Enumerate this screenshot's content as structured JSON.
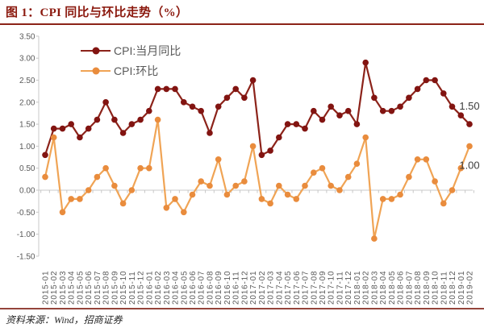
{
  "figure": {
    "title": "图 1：CPI 同比与环比走势（%）",
    "source": "资料来源：Wind，招商证券"
  },
  "colors": {
    "title_red": "#8B190E",
    "rule_top": "#8C2318",
    "rule_bottom": "#94443B",
    "yoy_line": "#8C231A",
    "yoy_marker": "#821411",
    "mom_line": "#F0A455",
    "mom_marker": "#E98C3D",
    "axis_line": "#C8C8C8",
    "axis_text": "#595959",
    "data_label": "#3C3C3C"
  },
  "legend": [
    {
      "label": "CPI:当月同比",
      "series": "yoy"
    },
    {
      "label": "CPI:环比",
      "series": "mom"
    }
  ],
  "chart_data": {
    "type": "line",
    "title": "CPI 同比与环比走势（%）",
    "xlabel": "",
    "ylabel": "",
    "ylim": [
      -1.5,
      3.5
    ],
    "ytick_step": 0.5,
    "ytick_labels": [
      "3.50",
      "3.00",
      "2.50",
      "2.00",
      "1.50",
      "1.00",
      "0.50",
      "0.00",
      "-0.50",
      "-1.00",
      "-1.50"
    ],
    "grid": false,
    "legend_position": "top-left-inside",
    "categories": [
      "2015-01",
      "2015-02",
      "2015-03",
      "2015-04",
      "2015-05",
      "2015-06",
      "2015-07",
      "2015-08",
      "2015-09",
      "2015-10",
      "2015-11",
      "2015-12",
      "2016-01",
      "2016-02",
      "2016-03",
      "2016-04",
      "2016-05",
      "2016-06",
      "2016-07",
      "2016-08",
      "2016-09",
      "2016-10",
      "2016-11",
      "2016-12",
      "2017-01",
      "2017-02",
      "2017-03",
      "2017-04",
      "2017-05",
      "2017-06",
      "2017-07",
      "2017-08",
      "2017-09",
      "2017-10",
      "2017-11",
      "2017-12",
      "2018-01",
      "2018-02",
      "2018-03",
      "2018-04",
      "2018-05",
      "2018-06",
      "2018-07",
      "2018-08",
      "2018-09",
      "2018-10",
      "2018-11",
      "2018-12",
      "2019-01",
      "2019-02"
    ],
    "series": [
      {
        "name": "CPI:当月同比",
        "values": [
          0.8,
          1.4,
          1.4,
          1.5,
          1.2,
          1.4,
          1.6,
          2.0,
          1.6,
          1.3,
          1.5,
          1.6,
          1.8,
          2.3,
          2.3,
          2.3,
          2.0,
          1.9,
          1.8,
          1.3,
          1.9,
          2.1,
          2.3,
          2.1,
          2.5,
          0.8,
          0.9,
          1.2,
          1.5,
          1.5,
          1.4,
          1.8,
          1.6,
          1.9,
          1.7,
          1.8,
          1.5,
          2.9,
          2.1,
          1.8,
          1.8,
          1.9,
          2.1,
          2.3,
          2.5,
          2.5,
          2.2,
          1.9,
          1.7,
          1.5
        ]
      },
      {
        "name": "CPI:环比",
        "values": [
          0.3,
          1.2,
          -0.5,
          -0.2,
          -0.2,
          0.0,
          0.3,
          0.5,
          0.1,
          -0.3,
          0.0,
          0.5,
          0.5,
          1.6,
          -0.4,
          -0.2,
          -0.5,
          -0.1,
          0.2,
          0.1,
          0.7,
          -0.1,
          0.1,
          0.2,
          1.0,
          -0.2,
          -0.3,
          0.1,
          -0.1,
          -0.2,
          0.1,
          0.4,
          0.5,
          0.1,
          0.0,
          0.3,
          0.6,
          1.2,
          -1.1,
          -0.2,
          -0.2,
          -0.1,
          0.3,
          0.7,
          0.7,
          0.2,
          -0.3,
          0.0,
          0.5,
          1.0
        ]
      }
    ],
    "end_labels": [
      {
        "series": 0,
        "text": "1.50",
        "position": "above"
      },
      {
        "series": 1,
        "text": "1.00",
        "position": "below"
      }
    ]
  }
}
